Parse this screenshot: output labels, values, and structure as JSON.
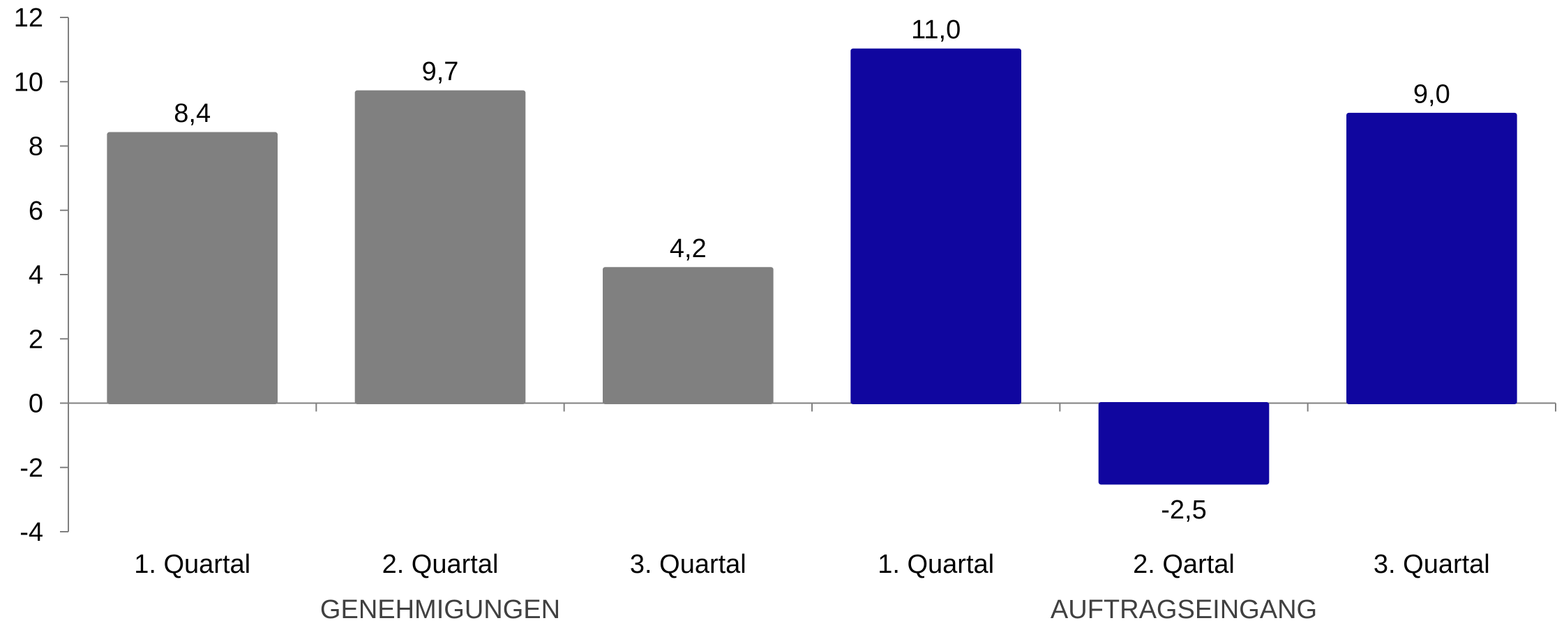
{
  "chart_data": {
    "type": "bar",
    "title": "",
    "xlabel": "",
    "ylabel": "",
    "ylim": [
      -4,
      12
    ],
    "yticks": [
      "12",
      "10",
      "8",
      "6",
      "4",
      "2",
      "0",
      "-2",
      "-4"
    ],
    "ytick_values": [
      12,
      10,
      8,
      6,
      4,
      2,
      0,
      -2,
      -4
    ],
    "grid": false,
    "legend": "none",
    "groups": [
      {
        "label": "GENEHMIGUNGEN",
        "color": "#808080",
        "categories": [
          "1. Quartal",
          "2. Quartal",
          "3. Quartal"
        ],
        "values": [
          8.4,
          9.7,
          4.2
        ],
        "value_labels": [
          "8,4",
          "9,7",
          "4,2"
        ]
      },
      {
        "label": "AUFTRAGSEINGANG",
        "color": "#10069f",
        "categories": [
          "1. Quartal",
          "2. Qartal",
          "3. Quartal"
        ],
        "values": [
          11.0,
          -2.5,
          9.0
        ],
        "value_labels": [
          "11,0",
          "-2,5",
          "9,0"
        ]
      }
    ]
  }
}
